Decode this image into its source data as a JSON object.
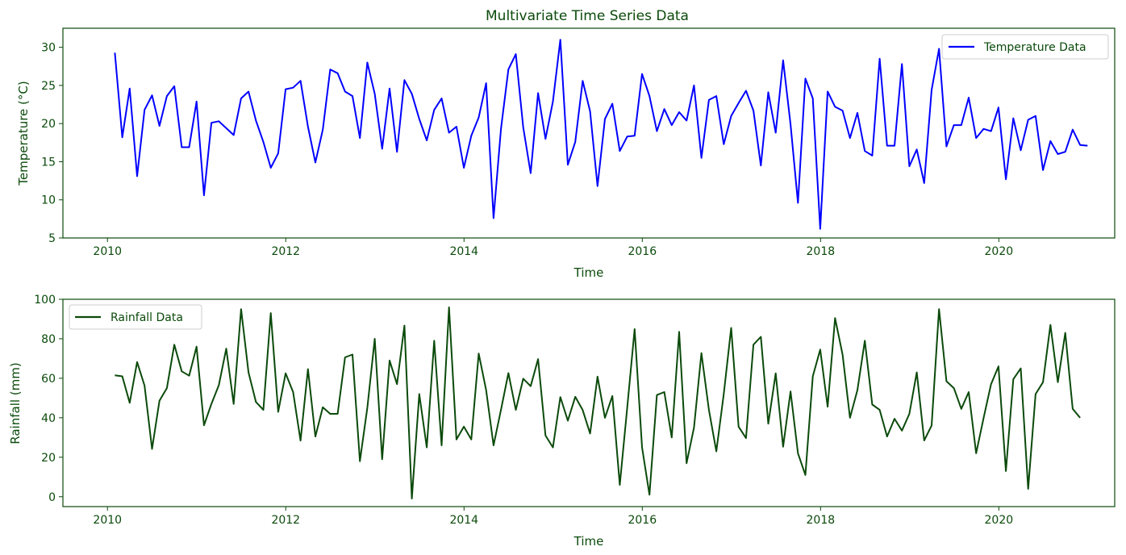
{
  "chart_data": [
    {
      "type": "line",
      "title": "Multivariate Time Series Data",
      "xlabel": "Time",
      "ylabel": "Temperature (°C)",
      "xlim": [
        2009.5,
        2021.3
      ],
      "ylim": [
        5,
        32.5
      ],
      "xticks": [
        2010,
        2012,
        2014,
        2016,
        2018,
        2020
      ],
      "yticks": [
        5,
        10,
        15,
        20,
        25,
        30
      ],
      "legend_position": "top-right",
      "grid": false,
      "series": [
        {
          "name": "Temperature Data",
          "color": "#0000ff",
          "x_start": 2010.083,
          "x_step": 0.0833,
          "values": [
            29.3,
            18.2,
            24.6,
            13.1,
            21.8,
            23.7,
            19.7,
            23.6,
            24.9,
            16.9,
            16.9,
            22.9,
            10.6,
            20.1,
            20.3,
            19.4,
            18.5,
            23.3,
            24.2,
            20.4,
            17.6,
            14.2,
            16.1,
            24.5,
            24.7,
            25.6,
            19.6,
            14.9,
            19.2,
            27.1,
            26.6,
            24.2,
            23.6,
            18.1,
            28.0,
            23.9,
            16.7,
            24.6,
            16.3,
            25.7,
            23.9,
            20.6,
            17.8,
            21.8,
            23.3,
            18.8,
            19.6,
            14.2,
            18.4,
            20.8,
            25.3,
            7.6,
            19.3,
            27.1,
            29.1,
            19.5,
            13.5,
            24.0,
            18.0,
            22.9,
            31.0,
            14.6,
            17.6,
            25.6,
            21.6,
            11.8,
            20.6,
            22.6,
            16.4,
            18.3,
            18.4,
            26.5,
            23.6,
            19.0,
            21.9,
            19.8,
            21.5,
            20.4,
            25.0,
            15.5,
            23.1,
            23.6,
            17.3,
            21.0,
            22.7,
            24.3,
            21.7,
            14.5,
            24.1,
            18.8,
            28.3,
            19.9,
            9.6,
            25.9,
            23.3,
            6.2,
            24.2,
            22.2,
            21.7,
            18.1,
            21.4,
            16.4,
            15.8,
            28.5,
            17.1,
            17.1,
            27.8,
            14.4,
            16.6,
            12.2,
            24.4,
            29.8,
            17.0,
            19.8,
            19.8,
            23.4,
            18.1,
            19.3,
            19.0,
            22.1,
            12.7,
            20.7,
            16.5,
            20.5,
            21.0,
            13.9,
            17.7,
            16.0,
            16.3,
            19.2,
            17.2,
            17.1
          ]
        }
      ]
    },
    {
      "type": "line",
      "title": "",
      "xlabel": "Time",
      "ylabel": "Rainfall (mm)",
      "xlim": [
        2009.5,
        2021.3
      ],
      "ylim": [
        -5,
        100
      ],
      "xticks": [
        2010,
        2012,
        2014,
        2016,
        2018,
        2020
      ],
      "yticks": [
        0,
        20,
        40,
        60,
        80,
        100
      ],
      "legend_position": "top-left",
      "grid": false,
      "series": [
        {
          "name": "Rainfall Data",
          "color": "#0b4a0b",
          "x_start": 2010.083,
          "x_step": 0.0833,
          "values": [
            61.5,
            61.0,
            47.6,
            68.2,
            56.3,
            24.2,
            48.6,
            55.0,
            77.0,
            63.5,
            61.3,
            76.0,
            36.2,
            47.0,
            56.5,
            75.0,
            47.0,
            95.0,
            63.0,
            48.0,
            44.0,
            93.0,
            43.0,
            62.5,
            53.0,
            28.4,
            64.6,
            30.5,
            45.3,
            42.0,
            42.0,
            70.6,
            72.0,
            18.0,
            45.0,
            80.0,
            19.0,
            69.0,
            57.0,
            86.7,
            -0.9,
            52.0,
            25.0,
            79.0,
            26.0,
            95.9,
            29.0,
            35.5,
            29.0,
            72.5,
            54.0,
            26.0,
            44.0,
            62.6,
            44.0,
            59.8,
            56.0,
            69.7,
            31.0,
            25.0,
            50.5,
            38.5,
            50.6,
            43.9,
            32.0,
            60.8,
            40.0,
            51.0,
            6.0,
            45.0,
            84.9,
            25.0,
            1.0,
            51.5,
            53.0,
            30.0,
            83.5,
            17.0,
            35.0,
            72.7,
            44.0,
            23.0,
            52.0,
            85.5,
            35.5,
            29.7,
            77.0,
            81.0,
            37.0,
            62.5,
            25.3,
            53.3,
            22.0,
            11.0,
            61.0,
            74.5,
            45.6,
            90.5,
            72.0,
            40.0,
            54.0,
            79.0,
            46.7,
            44.0,
            30.5,
            39.5,
            33.5,
            42.0,
            63.0,
            28.5,
            36.0,
            95.0,
            58.5,
            55.0,
            44.5,
            53.0,
            22.0,
            40.0,
            57.0,
            66.0,
            13.0,
            59.5,
            65.0,
            4.0,
            52.0,
            58.0,
            87.0,
            58.0,
            83.0,
            44.5,
            40.0
          ]
        }
      ]
    }
  ]
}
